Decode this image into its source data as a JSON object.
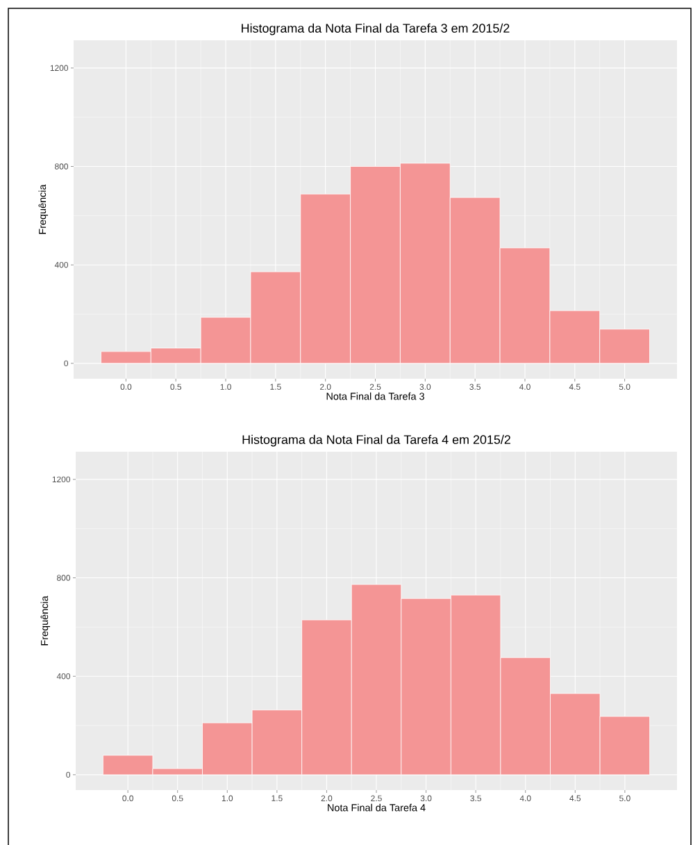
{
  "chart_data": [
    {
      "type": "histogram",
      "title": "Histograma da Nota Final da Tarefa 3 em 2015/2",
      "xlabel": "Nota Final da Tarefa 3",
      "ylabel": "Frequência",
      "bins": [
        -0.25,
        0.25,
        0.75,
        1.25,
        1.75,
        2.25,
        2.75,
        3.25,
        3.75,
        4.25,
        4.75,
        5.25
      ],
      "values": [
        48,
        62,
        187,
        372,
        688,
        800,
        813,
        674,
        469,
        214,
        139
      ],
      "color": "#f49595",
      "xlim": [
        -0.525,
        5.525
      ],
      "ylim": [
        -62.5,
        1312.5
      ],
      "xticks": [
        {
          "value": 0,
          "label": "0.0"
        },
        {
          "value": 0.5,
          "label": "0.5"
        },
        {
          "value": 1,
          "label": "1.0"
        },
        {
          "value": 1.5,
          "label": "1.5"
        },
        {
          "value": 2,
          "label": "2.0"
        },
        {
          "value": 2.5,
          "label": "2.5"
        },
        {
          "value": 3,
          "label": "3.0"
        },
        {
          "value": 3.5,
          "label": "3.5"
        },
        {
          "value": 4,
          "label": "4.0"
        },
        {
          "value": 4.5,
          "label": "4.5"
        },
        {
          "value": 5,
          "label": "5.0"
        }
      ],
      "yticks": [
        0,
        400,
        800,
        1200
      ],
      "grid": true
    },
    {
      "type": "histogram",
      "title": "Histograma da Nota Final da Tarefa 4 em 2015/2",
      "xlabel": "Nota Final da Tarefa 4",
      "ylabel": "Frequência",
      "bins": [
        -0.25,
        0.25,
        0.75,
        1.25,
        1.75,
        2.25,
        2.75,
        3.25,
        3.75,
        4.25,
        4.75,
        5.25
      ],
      "values": [
        79,
        25,
        211,
        263,
        629,
        773,
        716,
        730,
        476,
        330,
        237
      ],
      "color": "#f49595",
      "xlim": [
        -0.525,
        5.525
      ],
      "ylim": [
        -62.5,
        1312.5
      ],
      "xticks": [
        {
          "value": 0,
          "label": "0.0"
        },
        {
          "value": 0.5,
          "label": "0.5"
        },
        {
          "value": 1,
          "label": "1.0"
        },
        {
          "value": 1.5,
          "label": "1.5"
        },
        {
          "value": 2,
          "label": "2.0"
        },
        {
          "value": 2.5,
          "label": "2.5"
        },
        {
          "value": 3,
          "label": "3.0"
        },
        {
          "value": 3.5,
          "label": "3.5"
        },
        {
          "value": 4,
          "label": "4.0"
        },
        {
          "value": 4.5,
          "label": "4.5"
        },
        {
          "value": 5,
          "label": "5.0"
        }
      ],
      "yticks": [
        0,
        400,
        800,
        1200
      ],
      "grid": true
    }
  ]
}
